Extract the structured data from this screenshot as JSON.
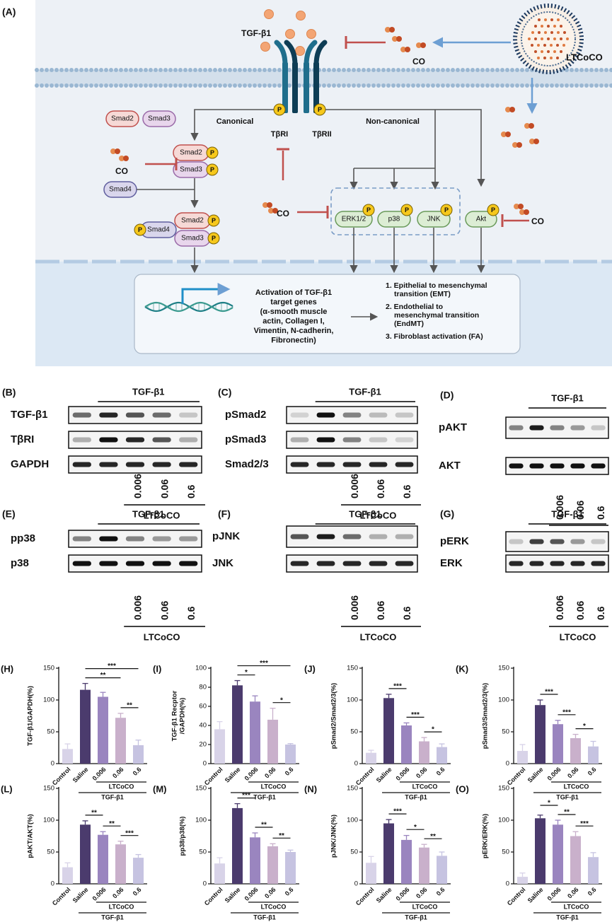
{
  "diagram": {
    "label": "(A)",
    "ligand": "TGF-β1",
    "carrier": "LTCoCO",
    "co": "CO",
    "receptors": [
      "TβRI",
      "TβRII"
    ],
    "phospho": "P",
    "pathways": [
      "Canonical",
      "Non-canonical"
    ],
    "smads": [
      "Smad2",
      "Smad3",
      "Smad4"
    ],
    "kinases": [
      "ERK1/2",
      "p38",
      "JNK",
      "Akt"
    ],
    "genes": [
      "Activation of TGF-β1",
      "target genes",
      "(α-smooth muscle",
      "actin, Collagen I,",
      "Vimentin, N-cadherin,",
      "Fibronectin)"
    ],
    "outcomes": [
      [
        "1. Epithelial to mesenchymal",
        "transition (EMT)"
      ],
      [
        "2. Endothelial to",
        "mesenchymal transition",
        "(EndMT)"
      ],
      [
        "3. Fibroblast activation (FA)"
      ]
    ]
  },
  "blots": [
    {
      "label": "(B)",
      "treatment": "TGF-β1",
      "rows": [
        "TGF-β1",
        "TβRI",
        "GAPDH"
      ],
      "doses": [
        "0.006",
        "0.06",
        "0.6"
      ],
      "group": "LTCoCO"
    },
    {
      "label": "(C)",
      "treatment": "TGF-β1",
      "rows": [
        "pSmad2",
        "pSmad3",
        "Smad2/3"
      ],
      "doses": [
        "0.006",
        "0.06",
        "0.6"
      ],
      "group": "LTCoCO"
    },
    {
      "label": "(D)",
      "treatment": "TGF-β1",
      "rows": [
        "pAKT",
        "AKT"
      ],
      "doses": [
        "0.006",
        "0.06",
        "0.6"
      ],
      "group": "LTCoCO"
    },
    {
      "label": "(E)",
      "treatment": "TGF-β1",
      "rows": [
        "pp38",
        "p38"
      ],
      "doses": [
        "0.006",
        "0.06",
        "0.6"
      ],
      "group": "LTCoCO"
    },
    {
      "label": "(F)",
      "treatment": "TGF-β1",
      "rows": [
        "pJNK",
        "JNK"
      ],
      "doses": [
        "0.006",
        "0.06",
        "0.6"
      ],
      "group": "LTCoCO"
    },
    {
      "label": "(G)",
      "treatment": "TGF-β1",
      "rows": [
        "pERK",
        "ERK"
      ],
      "doses": [
        "0.006",
        "0.06",
        "0.6"
      ],
      "group": "LTCoCO"
    }
  ],
  "chart_data": [
    {
      "type": "bar",
      "label": "(H)",
      "ylabel": [
        "TGF-β1/GAPDH(%)"
      ],
      "categories": [
        "Control",
        "Saline",
        "0.006",
        "0.06",
        "0.6"
      ],
      "values": [
        23,
        116,
        105,
        72,
        29
      ],
      "errors": [
        8,
        10,
        7,
        7,
        8
      ],
      "colors": [
        "#d8d3e8",
        "#4b3b6d",
        "#9a85bf",
        "#c9b0cb",
        "#c6c3e1"
      ],
      "ylim": [
        0,
        150
      ],
      "yticks": [
        0,
        50,
        100,
        150
      ],
      "significance": [
        {
          "from": 3,
          "to": 4,
          "label": "**"
        },
        {
          "from": 1,
          "to": 3,
          "label": "**"
        },
        {
          "from": 1,
          "to": 4,
          "label": "***"
        }
      ],
      "groups": [
        {
          "label": "LTCoCO",
          "from": 2,
          "to": 4
        },
        {
          "label": "TGF-β1",
          "from": 1,
          "to": 4
        }
      ]
    },
    {
      "type": "bar",
      "label": "(I)",
      "ylabel": [
        "TGF-β1 Recptor",
        "/GAPDH(%)"
      ],
      "categories": [
        "Control",
        "Saline",
        "0.006",
        "0.06",
        "0.6"
      ],
      "values": [
        36,
        82,
        65,
        46,
        20
      ],
      "errors": [
        8,
        5,
        6,
        12,
        1
      ],
      "colors": [
        "#d8d3e8",
        "#4b3b6d",
        "#9a85bf",
        "#c9b0cb",
        "#c6c3e1"
      ],
      "ylim": [
        0,
        100
      ],
      "yticks": [
        0,
        20,
        40,
        60,
        80,
        100
      ],
      "significance": [
        {
          "from": 1,
          "to": 2,
          "label": "*"
        },
        {
          "from": 3,
          "to": 4,
          "label": "*"
        },
        {
          "from": 1,
          "to": 4,
          "label": "***"
        }
      ],
      "groups": [
        {
          "label": "LTCoCO",
          "from": 2,
          "to": 4
        },
        {
          "label": "TGF-β1",
          "from": 1,
          "to": 4
        }
      ]
    },
    {
      "type": "bar",
      "label": "(J)",
      "ylabel": [
        "pSmad2/Smad2/3(%)"
      ],
      "categories": [
        "Control",
        "Saline",
        "0.006",
        "0.06",
        "0.6"
      ],
      "values": [
        17,
        103,
        60,
        35,
        26
      ],
      "errors": [
        4,
        6,
        4,
        6,
        5
      ],
      "colors": [
        "#d8d3e8",
        "#4b3b6d",
        "#9a85bf",
        "#c9b0cb",
        "#c6c3e1"
      ],
      "ylim": [
        0,
        150
      ],
      "yticks": [
        0,
        50,
        100,
        150
      ],
      "significance": [
        {
          "from": 3,
          "to": 4,
          "label": "*"
        },
        {
          "from": 2,
          "to": 3,
          "label": "***"
        },
        {
          "from": 1,
          "to": 2,
          "label": "***"
        }
      ],
      "groups": [
        {
          "label": "LTCoCO",
          "from": 2,
          "to": 4
        },
        {
          "label": "TGF-β1",
          "from": 1,
          "to": 4
        }
      ]
    },
    {
      "type": "bar",
      "label": "(K)",
      "ylabel": [
        "pSmad3/Smad2/3(%)"
      ],
      "categories": [
        "Control",
        "Saline",
        "0.006",
        "0.06",
        "0.6"
      ],
      "values": [
        20,
        92,
        62,
        40,
        27
      ],
      "errors": [
        10,
        8,
        6,
        6,
        8
      ],
      "colors": [
        "#d8d3e8",
        "#4b3b6d",
        "#9a85bf",
        "#c9b0cb",
        "#c6c3e1"
      ],
      "ylim": [
        0,
        150
      ],
      "yticks": [
        0,
        50,
        100,
        150
      ],
      "significance": [
        {
          "from": 3,
          "to": 4,
          "label": "*"
        },
        {
          "from": 2,
          "to": 3,
          "label": "***"
        },
        {
          "from": 1,
          "to": 2,
          "label": "***"
        }
      ],
      "groups": [
        {
          "label": "LTCoCO",
          "from": 2,
          "to": 4
        },
        {
          "label": "TGF-β1",
          "from": 1,
          "to": 4
        }
      ]
    },
    {
      "type": "bar",
      "label": "(L)",
      "ylabel": [
        "pAKT/AKT(%)"
      ],
      "categories": [
        "Control",
        "Saline",
        "0.006",
        "0.06",
        "0.6"
      ],
      "values": [
        26,
        93,
        77,
        62,
        41
      ],
      "errors": [
        7,
        6,
        5,
        5,
        5
      ],
      "colors": [
        "#d8d3e8",
        "#4b3b6d",
        "#9a85bf",
        "#c9b0cb",
        "#c6c3e1"
      ],
      "ylim": [
        0,
        150
      ],
      "yticks": [
        0,
        50,
        100,
        150
      ],
      "significance": [
        {
          "from": 3,
          "to": 4,
          "label": "***"
        },
        {
          "from": 2,
          "to": 3,
          "label": "**"
        },
        {
          "from": 1,
          "to": 2,
          "label": "**"
        }
      ],
      "groups": [
        {
          "label": "LTCoCO",
          "from": 2,
          "to": 4
        },
        {
          "label": "TGF-β1",
          "from": 1,
          "to": 4
        }
      ]
    },
    {
      "type": "bar",
      "label": "(M)",
      "ylabel": [
        "pp38/p38(%)"
      ],
      "categories": [
        "Control",
        "Saline",
        "0.006",
        "0.06",
        "0.6"
      ],
      "values": [
        32,
        119,
        73,
        59,
        50
      ],
      "errors": [
        9,
        7,
        7,
        4,
        3
      ],
      "colors": [
        "#d8d3e8",
        "#4b3b6d",
        "#9a85bf",
        "#c9b0cb",
        "#c6c3e1"
      ],
      "ylim": [
        0,
        150
      ],
      "yticks": [
        0,
        50,
        100,
        150
      ],
      "significance": [
        {
          "from": 3,
          "to": 4,
          "label": "**"
        },
        {
          "from": 2,
          "to": 3,
          "label": "**"
        },
        {
          "from": 1,
          "to": 2,
          "label": "***"
        }
      ],
      "groups": [
        {
          "label": "LTCoCO",
          "from": 2,
          "to": 4
        },
        {
          "label": "TGF-β1",
          "from": 1,
          "to": 4
        }
      ]
    },
    {
      "type": "bar",
      "label": "(N)",
      "ylabel": [
        "pJNK/JNK(%)"
      ],
      "categories": [
        "Control",
        "Saline",
        "0.006",
        "0.06",
        "0.6"
      ],
      "values": [
        33,
        95,
        69,
        57,
        44
      ],
      "errors": [
        10,
        6,
        7,
        5,
        6
      ],
      "colors": [
        "#d8d3e8",
        "#4b3b6d",
        "#9a85bf",
        "#c9b0cb",
        "#c6c3e1"
      ],
      "ylim": [
        0,
        150
      ],
      "yticks": [
        0,
        50,
        100,
        150
      ],
      "significance": [
        {
          "from": 3,
          "to": 4,
          "label": "**"
        },
        {
          "from": 2,
          "to": 3,
          "label": "*"
        },
        {
          "from": 1,
          "to": 2,
          "label": "***"
        }
      ],
      "groups": [
        {
          "label": "LTCoCO",
          "from": 2,
          "to": 4
        },
        {
          "label": "TGF-β1",
          "from": 1,
          "to": 4
        }
      ]
    },
    {
      "type": "bar",
      "label": "(O)",
      "ylabel": [
        "pERK/ERK(%)"
      ],
      "categories": [
        "Control",
        "Saline",
        "0.006",
        "0.06",
        "0.6"
      ],
      "values": [
        11,
        103,
        93,
        75,
        42
      ],
      "errors": [
        6,
        5,
        7,
        7,
        7
      ],
      "colors": [
        "#d8d3e8",
        "#4b3b6d",
        "#9a85bf",
        "#c9b0cb",
        "#c6c3e1"
      ],
      "ylim": [
        0,
        150
      ],
      "yticks": [
        0,
        50,
        100,
        150
      ],
      "significance": [
        {
          "from": 3,
          "to": 4,
          "label": "***"
        },
        {
          "from": 2,
          "to": 3,
          "label": "**"
        },
        {
          "from": 1,
          "to": 2,
          "label": "*"
        }
      ],
      "groups": [
        {
          "label": "LTCoCO",
          "from": 2,
          "to": 4
        },
        {
          "label": "TGF-β1",
          "from": 1,
          "to": 4
        }
      ]
    }
  ]
}
